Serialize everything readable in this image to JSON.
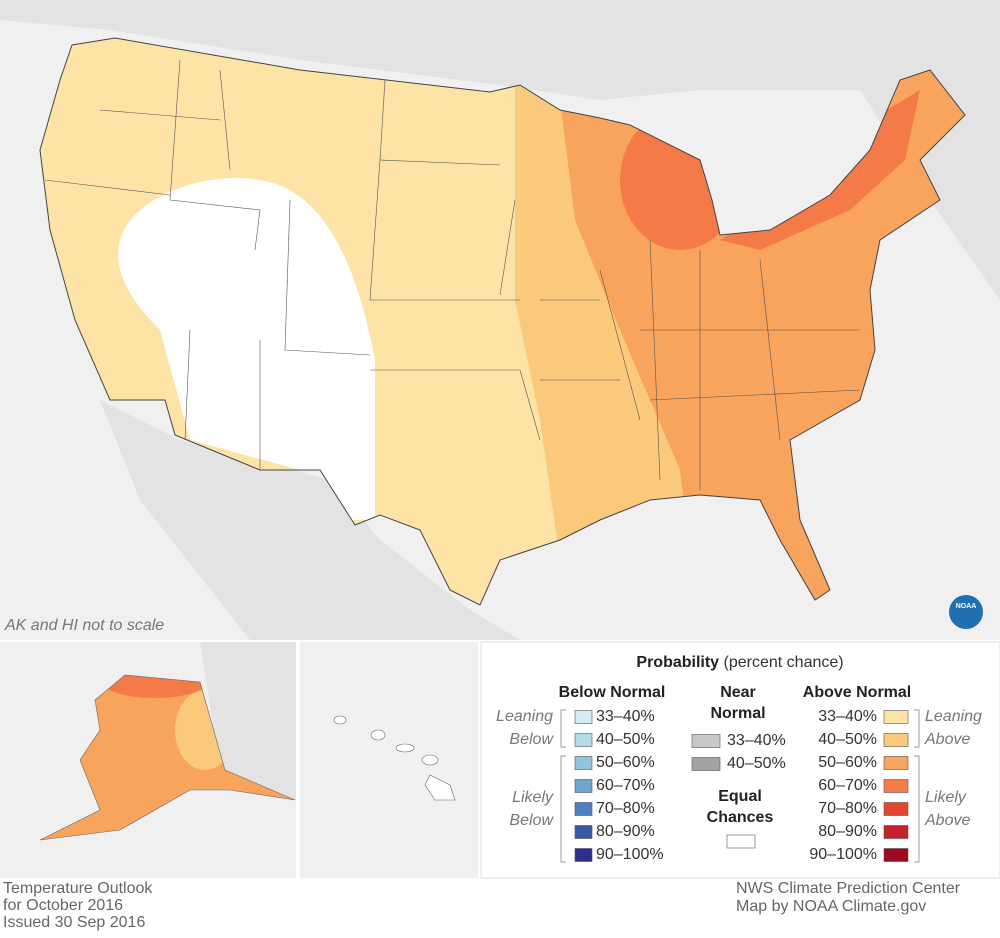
{
  "map": {
    "note": "AK and HI not to scale",
    "logo": "NOAA"
  },
  "legend": {
    "title": "Probability",
    "title_suffix": "(percent chance)",
    "below_normal": {
      "heading": "Below Normal",
      "leaning": [
        "Leaning",
        "Below"
      ],
      "likely": [
        "Likely",
        "Below"
      ],
      "bins": [
        {
          "label": "33–40%",
          "color": "#d4eef6"
        },
        {
          "label": "40–50%",
          "color": "#b3dceb"
        },
        {
          "label": "50–60%",
          "color": "#8fc5de"
        },
        {
          "label": "60–70%",
          "color": "#6fa6cf"
        },
        {
          "label": "70–80%",
          "color": "#4f7fbf"
        },
        {
          "label": "80–90%",
          "color": "#3b56aa"
        },
        {
          "label": "90–100%",
          "color": "#2b2f8d"
        }
      ]
    },
    "near_normal": {
      "heading": [
        "Near",
        "Normal"
      ],
      "bins": [
        {
          "label": "33–40%",
          "color": "#c8c8c8"
        },
        {
          "label": "40–50%",
          "color": "#a3a3a3"
        }
      ]
    },
    "equal_chances": {
      "label": [
        "Equal",
        "Chances"
      ],
      "color": "#ffffff"
    },
    "above_normal": {
      "heading": "Above Normal",
      "leaning": [
        "Leaning",
        "Above"
      ],
      "likely": [
        "Likely",
        "Above"
      ],
      "bins": [
        {
          "label": "33–40%",
          "color": "#fde3a5"
        },
        {
          "label": "40–50%",
          "color": "#fbc97b"
        },
        {
          "label": "50–60%",
          "color": "#f8a45c"
        },
        {
          "label": "60–70%",
          "color": "#f47a48"
        },
        {
          "label": "70–80%",
          "color": "#e2462f"
        },
        {
          "label": "80–90%",
          "color": "#c62127"
        },
        {
          "label": "90–100%",
          "color": "#9d0a20"
        }
      ]
    }
  },
  "footer": {
    "left": [
      "Temperature Outlook",
      "for October 2016",
      "Issued 30 Sep 2016"
    ],
    "right": [
      "NWS Climate Prediction Center",
      "Map by NOAA Climate.gov"
    ]
  }
}
